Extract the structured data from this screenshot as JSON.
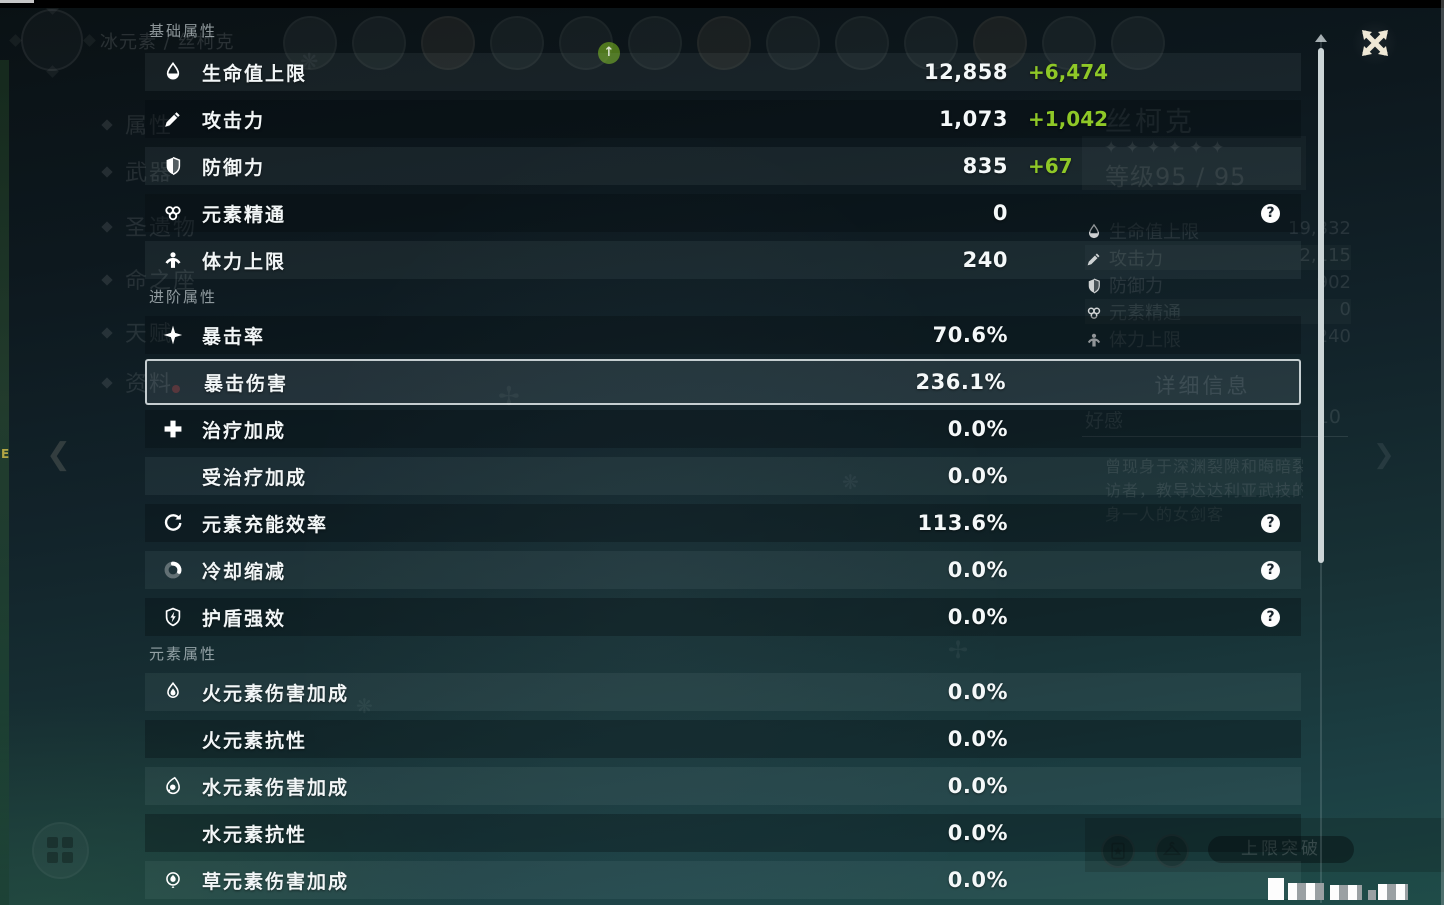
{
  "overlay": {
    "help_glyph": "?",
    "sections": [
      {
        "title": "基础属性",
        "rows": [
          {
            "icon": "hp",
            "label": "生命值上限",
            "value": "12,858",
            "bonus": "+6,474"
          },
          {
            "icon": "atk",
            "label": "攻击力",
            "value": "1,073",
            "bonus": "+1,042"
          },
          {
            "icon": "def",
            "label": "防御力",
            "value": "835",
            "bonus": "+67"
          },
          {
            "icon": "em",
            "label": "元素精通",
            "value": "0",
            "help": true
          },
          {
            "icon": "stamina",
            "label": "体力上限",
            "value": "240"
          }
        ]
      },
      {
        "title": "进阶属性",
        "rows": [
          {
            "icon": "crit-rate",
            "label": "暴击率",
            "value": "70.6%"
          },
          {
            "icon": null,
            "label": "暴击伤害",
            "value": "236.1%",
            "highlighted": true
          },
          {
            "icon": "healing",
            "label": "治疗加成",
            "value": "0.0%"
          },
          {
            "icon": null,
            "label": "受治疗加成",
            "value": "0.0%"
          },
          {
            "icon": "energy-recharge",
            "label": "元素充能效率",
            "value": "113.6%",
            "help": true
          },
          {
            "icon": "cooldown",
            "label": "冷却缩减",
            "value": "0.0%",
            "help": true
          },
          {
            "icon": "shield-strength",
            "label": "护盾强效",
            "value": "0.0%",
            "help": true
          }
        ]
      },
      {
        "title": "元素属性",
        "rows": [
          {
            "icon": "pyro",
            "label": "火元素伤害加成",
            "value": "0.0%"
          },
          {
            "icon": null,
            "label": "火元素抗性",
            "value": "0.0%"
          },
          {
            "icon": "hydro",
            "label": "水元素伤害加成",
            "value": "0.0%"
          },
          {
            "icon": null,
            "label": "水元素抗性",
            "value": "0.0%"
          },
          {
            "icon": "dendro",
            "label": "草元素伤害加成",
            "value": "0.0%"
          }
        ]
      }
    ]
  },
  "background": {
    "element_label": "冰元素 / 丝柯克",
    "nav_items": [
      "属性",
      "武器",
      "圣遗物",
      "命之座",
      "天赋",
      "资料"
    ],
    "avatar_count": 13,
    "upgrade_badge_glyph": "↑",
    "character": {
      "name": "丝柯克",
      "stars": "✦✦✦✦✦✦",
      "level": "等级95 / 95"
    },
    "side_stats": [
      {
        "icon": "hp",
        "label": "生命值上限",
        "value": "19,332"
      },
      {
        "icon": "atk",
        "label": "攻击力",
        "value": "2,115"
      },
      {
        "icon": "def",
        "label": "防御力",
        "value": "902"
      },
      {
        "icon": "em",
        "label": "元素精通",
        "value": "0"
      },
      {
        "icon": "stamina",
        "label": "体力上限",
        "value": "240"
      }
    ],
    "detail_button": "详细信息",
    "friendship": {
      "label": "好感",
      "value": "10"
    },
    "description_lines": [
      "曾现身于深渊裂隙和晦暗裂隙的",
      "访者，教导达达利亚武技的师",
      "身一人的女剑客"
    ],
    "ascend_button": "上限突破",
    "edge_mark": "E"
  },
  "colors": {
    "bonus_green": "#8fc827",
    "panel_teal": "#14262c",
    "highlight_border": "#e2e9eb"
  }
}
